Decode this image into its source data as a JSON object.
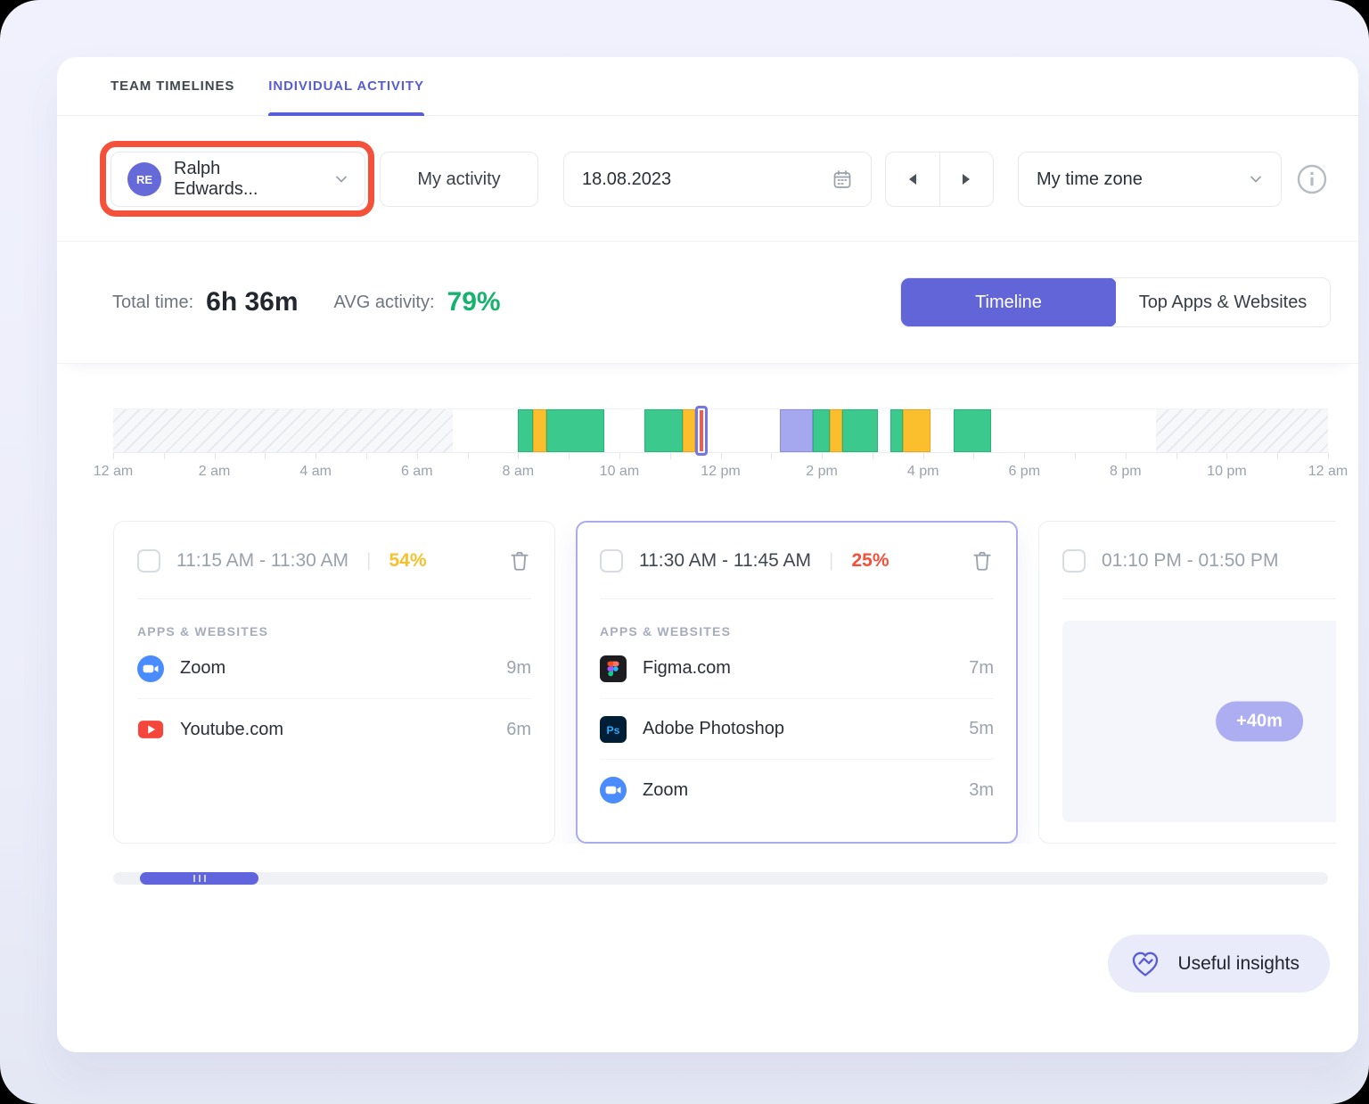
{
  "tabs": {
    "team_timelines": "TEAM TIMELINES",
    "individual_activity": "INDIVIDUAL ACTIVITY"
  },
  "filters": {
    "user": {
      "initials": "RE",
      "name": "Ralph Edwards..."
    },
    "my_activity_label": "My activity",
    "date": "18.08.2023",
    "timezone": "My time zone"
  },
  "stats": {
    "total_time_label": "Total time:",
    "total_time_value": "6h 36m",
    "avg_activity_label": "AVG activity:",
    "avg_activity_value": "79%",
    "avg_activity_color": "#16B26E"
  },
  "view_toggle": {
    "timeline_label": "Timeline",
    "top_apps_label": "Top Apps & Websites",
    "active": "Timeline",
    "active_color": "#6165D8"
  },
  "cards": [
    {
      "time": "11:15 AM - 11:30 AM",
      "percent": "54%",
      "percent_color": "#F6C12F",
      "section_label": "APPS & WEBSITES",
      "apps": [
        {
          "name": "Zoom",
          "duration": "9m",
          "icon": "zoom-icon"
        },
        {
          "name": "Youtube.com",
          "duration": "6m",
          "icon": "youtube-icon"
        }
      ]
    },
    {
      "time": "11:30 AM - 11:45 AM",
      "percent": "25%",
      "percent_color": "#F4503C",
      "selected": true,
      "section_label": "APPS & WEBSITES",
      "apps": [
        {
          "name": "Figma.com",
          "duration": "7m",
          "icon": "figma-icon"
        },
        {
          "name": "Adobe Photoshop",
          "duration": "5m",
          "icon": "photoshop-icon"
        },
        {
          "name": "Zoom",
          "duration": "3m",
          "icon": "zoom-icon"
        }
      ]
    },
    {
      "time": "01:10 PM - 01:50 PM",
      "badge": "+40m",
      "badge_color": "#ACAEF1"
    }
  ],
  "insights_button_label": "Useful insights",
  "annotation": {
    "color": "#F4503A",
    "target": "user-select"
  },
  "chart_data": {
    "type": "timeline",
    "title": "Daily activity timeline",
    "hours_total": 24,
    "x_axis_labels": [
      "12 am",
      "2 am",
      "4 am",
      "6 am",
      "8 am",
      "10 am",
      "12 pm",
      "2 pm",
      "4 pm",
      "6 pm",
      "8 pm",
      "10 pm",
      "12 am"
    ],
    "minor_tick_every_hours": 1,
    "legend": {
      "productive": "#3BC98E",
      "idle": "#FBBE2C",
      "low": "#F25B4D",
      "manual": "#A5A7EF",
      "untracked": "hatched"
    },
    "segments": [
      {
        "kind": "untracked",
        "start": 0,
        "end": 6.7
      },
      {
        "kind": "productive",
        "start": 8.0,
        "end": 8.3
      },
      {
        "kind": "idle",
        "start": 8.3,
        "end": 8.55
      },
      {
        "kind": "productive",
        "start": 8.55,
        "end": 9.7
      },
      {
        "kind": "productive",
        "start": 10.5,
        "end": 11.25
      },
      {
        "kind": "idle",
        "start": 11.25,
        "end": 11.5
      },
      {
        "kind": "low",
        "start": 11.5,
        "end": 11.75,
        "selected": true
      },
      {
        "kind": "manual",
        "start": 13.17,
        "end": 13.83
      },
      {
        "kind": "productive",
        "start": 13.83,
        "end": 14.15
      },
      {
        "kind": "idle",
        "start": 14.15,
        "end": 14.4
      },
      {
        "kind": "productive",
        "start": 14.4,
        "end": 15.1
      },
      {
        "kind": "productive",
        "start": 15.35,
        "end": 15.6
      },
      {
        "kind": "idle",
        "start": 15.6,
        "end": 16.15
      },
      {
        "kind": "productive",
        "start": 16.6,
        "end": 17.35
      },
      {
        "kind": "untracked",
        "start": 20.6,
        "end": 24
      }
    ]
  }
}
